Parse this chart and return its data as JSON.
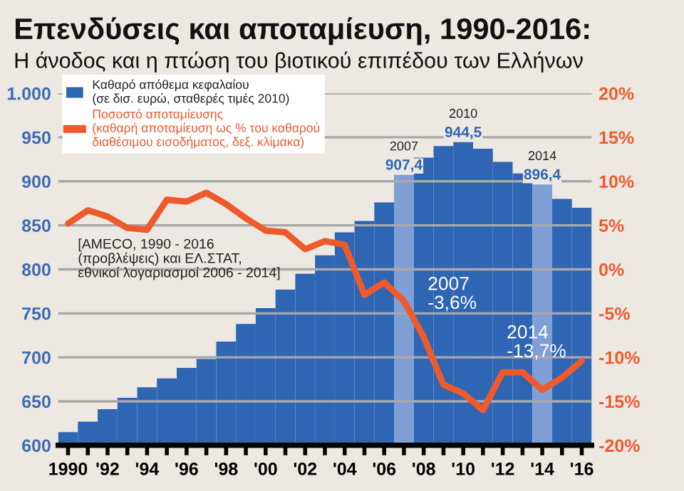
{
  "chart_data": {
    "type": "bar",
    "title": "Επενδύσεις και αποταμίευση, 1990-2016:",
    "subtitle": "Η άνοδος και η πτώση του βιοτικού επιπέδου των Ελλήνων",
    "x": [
      1990,
      1991,
      1992,
      1993,
      1994,
      1995,
      1996,
      1997,
      1998,
      1999,
      2000,
      2001,
      2002,
      2003,
      2004,
      2005,
      2006,
      2007,
      2008,
      2009,
      2010,
      2011,
      2012,
      2013,
      2014,
      2015,
      2016
    ],
    "series": [
      {
        "name": "Καθαρό απόθεμα κεφαλαίου\n(σε δισ. ευρώ, σταθερές τιμές 2010)",
        "color": "#2f66b3",
        "colors": [
          "#2f66b3",
          "#2f66b3",
          "#2f66b3",
          "#2f66b3",
          "#2f66b3",
          "#2f66b3",
          "#2f66b3",
          "#2f66b3",
          "#2f66b3",
          "#2f66b3",
          "#2f66b3",
          "#2f66b3",
          "#2f66b3",
          "#2f66b3",
          "#2f66b3",
          "#2f66b3",
          "#2f66b3",
          "#7f9fd6",
          "#2f66b3",
          "#2f66b3",
          "#2f66b3",
          "#2f66b3",
          "#2f66b3",
          "#2f66b3",
          "#7f9fd6",
          "#2f66b3",
          "#2f66b3"
        ],
        "values": [
          615,
          627,
          641,
          654,
          666,
          676,
          688,
          698,
          718,
          738,
          756,
          777,
          795,
          816,
          842,
          855,
          876,
          907.4,
          927,
          940,
          944.5,
          937,
          922,
          909,
          896.4,
          880,
          870
        ],
        "value_labels": [
          null,
          null,
          null,
          null,
          null,
          null,
          null,
          null,
          null,
          null,
          null,
          null,
          null,
          null,
          null,
          null,
          null,
          "907,4",
          null,
          null,
          "944,5",
          null,
          null,
          null,
          "896,4",
          null,
          null
        ]
      },
      {
        "name": "Ποσοστό αποταμίευσης\n(καθαρή αποταμίευση ως % του καθαρού\nδιαθέσιμου εισοδήματος, δεξ. κλίμακα)",
        "type": "line",
        "axis": "y2",
        "color": "#ee5a2c",
        "values": [
          5.2,
          6.7,
          6.0,
          4.7,
          4.5,
          7.9,
          7.7,
          8.7,
          7.4,
          5.8,
          4.4,
          4.2,
          2.3,
          3.2,
          2.8,
          -2.9,
          -1.5,
          -3.6,
          -7.7,
          -13.1,
          -14.1,
          -16.0,
          -11.7,
          -11.7,
          -13.7,
          -12.3,
          -10.4
        ]
      }
    ],
    "xlim": [
      1989.5,
      2016.5
    ],
    "xticks": [
      {
        "value": 1990,
        "label": "1990"
      },
      {
        "value": 1991,
        "label": null
      },
      {
        "value": 1992,
        "label": "'92"
      },
      {
        "value": 1993,
        "label": null
      },
      {
        "value": 1994,
        "label": "'94"
      },
      {
        "value": 1995,
        "label": null
      },
      {
        "value": 1996,
        "label": "'96"
      },
      {
        "value": 1997,
        "label": null
      },
      {
        "value": 1998,
        "label": "'98"
      },
      {
        "value": 1999,
        "label": null
      },
      {
        "value": 2000,
        "label": "'00"
      },
      {
        "value": 2001,
        "label": null
      },
      {
        "value": 2002,
        "label": "'02"
      },
      {
        "value": 2003,
        "label": null
      },
      {
        "value": 2004,
        "label": "'04"
      },
      {
        "value": 2005,
        "label": null
      },
      {
        "value": 2006,
        "label": "'06"
      },
      {
        "value": 2007,
        "label": null
      },
      {
        "value": 2008,
        "label": "'08"
      },
      {
        "value": 2009,
        "label": null
      },
      {
        "value": 2010,
        "label": "'10"
      },
      {
        "value": 2011,
        "label": null
      },
      {
        "value": 2012,
        "label": "'12"
      },
      {
        "value": 2013,
        "label": null
      },
      {
        "value": 2014,
        "label": "'14"
      },
      {
        "value": 2015,
        "label": null
      },
      {
        "value": 2016,
        "label": "'16"
      }
    ],
    "ylim": [
      600,
      1000
    ],
    "yticks": [
      600,
      650,
      700,
      750,
      800,
      850,
      900,
      950,
      {
        "value": 1000,
        "label": "1.000"
      }
    ],
    "y2lim": [
      -20,
      20
    ],
    "y2ticks": [
      {
        "value": -20,
        "label": "-20%"
      },
      {
        "value": -15,
        "label": "-15%"
      },
      {
        "value": -10,
        "label": "-10%"
      },
      {
        "value": -5,
        "label": "-5%"
      },
      {
        "value": 0,
        "label": "0%"
      },
      {
        "value": 5,
        "label": "5%"
      },
      {
        "value": 10,
        "label": "10%"
      },
      {
        "value": 15,
        "label": "15%"
      },
      {
        "value": 20,
        "label": "20%"
      }
    ],
    "grid": "y",
    "legend": "top left",
    "annotations": [
      {
        "text": "2007",
        "x": 2007,
        "y": 907.4
      },
      {
        "text": "2010",
        "x": 2010,
        "y": 944.5
      },
      {
        "text": "2014",
        "x": 2014,
        "y": 896.4
      },
      "2007\n-3,6%",
      "2014\n-13,7%",
      "[AMECO, 1990 - 2016\n(προβλέψεις) και ΕΛ.ΣΤΑΤ,\nεθνικοί λογαριασμοί 2006 - 2014]"
    ]
  }
}
